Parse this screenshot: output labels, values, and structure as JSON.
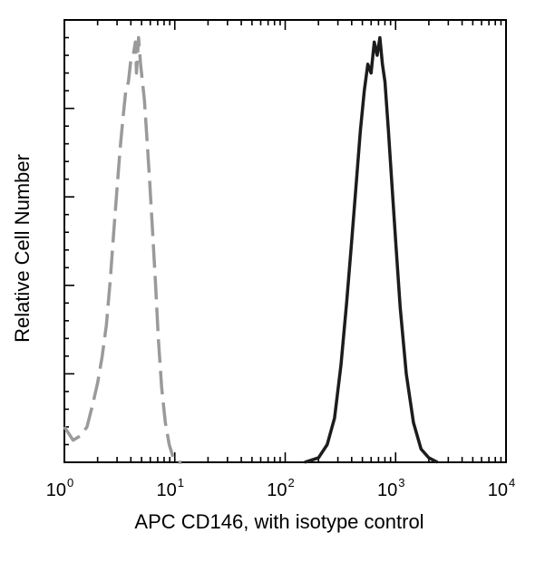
{
  "chart_data": {
    "type": "line",
    "title": "",
    "xlabel": "APC CD146, with isotype control",
    "ylabel": "Relative Cell Number",
    "x_scale": "log",
    "xlim": [
      1,
      10000
    ],
    "ylim": [
      0,
      100
    ],
    "x_ticks": [
      {
        "base": "10",
        "exp": "0"
      },
      {
        "base": "10",
        "exp": "1"
      },
      {
        "base": "10",
        "exp": "2"
      },
      {
        "base": "10",
        "exp": "3"
      },
      {
        "base": "10",
        "exp": "4"
      }
    ],
    "x_tick_values": [
      1,
      10,
      100,
      1000,
      10000
    ],
    "y_tick_labels_shown": false,
    "grid": false,
    "legend": "none",
    "series": [
      {
        "color": "#9a9a9a",
        "line_style": "dashed",
        "x": [
          1.0,
          1.2,
          1.4,
          1.6,
          1.8,
          2.0,
          2.2,
          2.4,
          2.6,
          2.8,
          3.0,
          3.2,
          3.4,
          3.6,
          3.8,
          4.0,
          4.2,
          4.4,
          4.5,
          4.7,
          4.9,
          5.1,
          5.3,
          5.6,
          5.9,
          6.3,
          6.7,
          7.1,
          7.6,
          8.2,
          8.9,
          9.7,
          10.5,
          11.5
        ],
        "y": [
          8,
          5,
          6,
          8,
          13,
          18,
          24,
          31,
          41,
          52,
          62,
          71,
          78,
          84,
          86,
          91,
          92,
          95,
          88,
          96,
          90,
          86,
          82,
          73,
          64,
          52,
          40,
          28,
          17,
          9,
          4,
          1,
          0,
          0
        ]
      },
      {
        "color": "#1c1c1c",
        "line_style": "solid",
        "x": [
          150,
          200,
          240,
          280,
          320,
          360,
          400,
          440,
          480,
          520,
          560,
          600,
          640,
          680,
          720,
          760,
          800,
          860,
          920,
          1000,
          1100,
          1250,
          1450,
          1700,
          2000,
          2400
        ],
        "y": [
          0,
          1,
          4,
          10,
          22,
          36,
          50,
          63,
          75,
          84,
          90,
          88,
          95,
          92,
          96,
          90,
          86,
          75,
          64,
          50,
          35,
          20,
          9,
          3,
          1,
          0
        ]
      }
    ]
  }
}
